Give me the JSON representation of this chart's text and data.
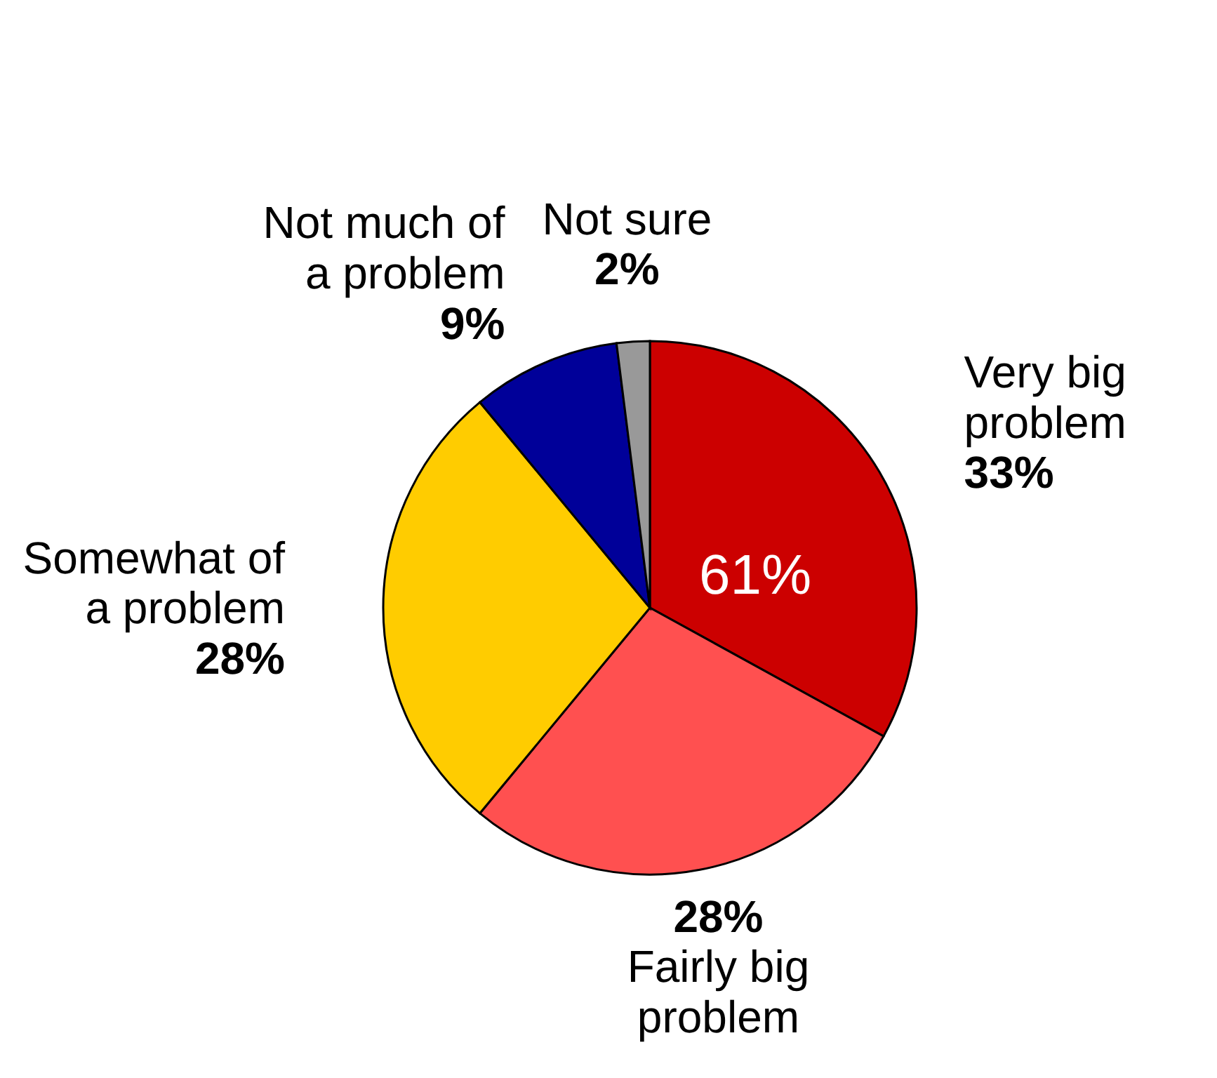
{
  "chart_data": {
    "type": "pie",
    "categories": [
      "Very big problem",
      "Fairly big problem",
      "Somewhat of a problem",
      "Not much of a problem",
      "Not sure"
    ],
    "values": [
      33,
      28,
      28,
      9,
      2
    ],
    "value_labels": [
      "33%",
      "28%",
      "28%",
      "9%",
      "2%"
    ],
    "colors": [
      "#cc0000",
      "#ff5050",
      "#ffcc00",
      "#000099",
      "#999999"
    ],
    "annotations": [
      "61%"
    ],
    "legend": false
  }
}
